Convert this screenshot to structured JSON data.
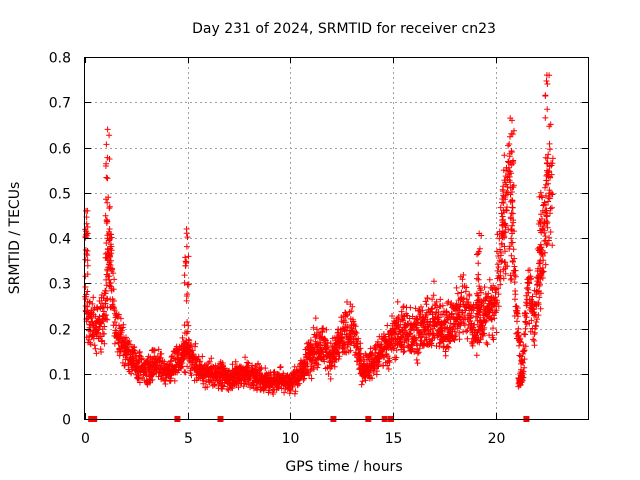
{
  "chart_data": {
    "type": "scatter",
    "title": "Day 231 of 2024, SRMTID for receiver cn23",
    "xlabel": "GPS time / hours",
    "ylabel": "SRMTID / TECUs",
    "xlim": [
      0,
      24.5
    ],
    "ylim": [
      0,
      0.8
    ],
    "xticks": [
      0,
      5,
      10,
      15,
      20
    ],
    "xtick_labels": [
      "0",
      "5",
      "10",
      "15",
      "20"
    ],
    "yticks": [
      0,
      0.1,
      0.2,
      0.3,
      0.4,
      0.5,
      0.6,
      0.7,
      0.8
    ],
    "ytick_labels": [
      "0",
      "0.1",
      "0.2",
      "0.3",
      "0.4",
      "0.5",
      "0.6",
      "0.7",
      "0.8"
    ],
    "grid": true,
    "marker": "+",
    "series_color": "#ff0000",
    "zero_markers_x": [
      0.3,
      0.45,
      4.5,
      6.6,
      12.1,
      13.8,
      14.6,
      14.9,
      21.5
    ],
    "trend": {
      "x": [
        0,
        0.25,
        0.5,
        0.9,
        1.2,
        1.5,
        2,
        2.5,
        3,
        3.5,
        4,
        4.5,
        5,
        5.5,
        6,
        6.5,
        7,
        7.5,
        8,
        8.5,
        9,
        9.5,
        10,
        10.5,
        11,
        11.5,
        12,
        12.5,
        13,
        13.5,
        14,
        14.5,
        15,
        15.5,
        16,
        16.5,
        17,
        17.5,
        18,
        18.5,
        19,
        19.5,
        20,
        20.3,
        20.7,
        21,
        21.3,
        21.6,
        21.9,
        22.2,
        22.5,
        22.8
      ],
      "y": [
        0.25,
        0.22,
        0.2,
        0.22,
        0.35,
        0.2,
        0.15,
        0.12,
        0.11,
        0.12,
        0.1,
        0.13,
        0.15,
        0.11,
        0.1,
        0.1,
        0.09,
        0.1,
        0.1,
        0.09,
        0.08,
        0.09,
        0.08,
        0.1,
        0.15,
        0.17,
        0.13,
        0.18,
        0.2,
        0.11,
        0.12,
        0.15,
        0.18,
        0.2,
        0.19,
        0.2,
        0.22,
        0.2,
        0.22,
        0.25,
        0.2,
        0.23,
        0.25,
        0.4,
        0.55,
        0.25,
        0.1,
        0.3,
        0.22,
        0.35,
        0.5,
        0.55
      ]
    },
    "spikes": [
      {
        "x": 0.05,
        "ymin": 0.3,
        "ymax": 0.46
      },
      {
        "x": 1.1,
        "ymin": 0.3,
        "ymax": 0.64
      },
      {
        "x": 1.2,
        "ymin": 0.3,
        "ymax": 0.42
      },
      {
        "x": 4.95,
        "ymin": 0.15,
        "ymax": 0.42
      },
      {
        "x": 19.2,
        "ymin": 0.2,
        "ymax": 0.41
      },
      {
        "x": 20.4,
        "ymin": 0.3,
        "ymax": 0.55
      },
      {
        "x": 20.8,
        "ymin": 0.3,
        "ymax": 0.66
      },
      {
        "x": 21.2,
        "ymin": 0.07,
        "ymax": 0.1
      },
      {
        "x": 22.2,
        "ymin": 0.3,
        "ymax": 0.5
      },
      {
        "x": 22.5,
        "ymin": 0.35,
        "ymax": 0.76
      }
    ]
  }
}
